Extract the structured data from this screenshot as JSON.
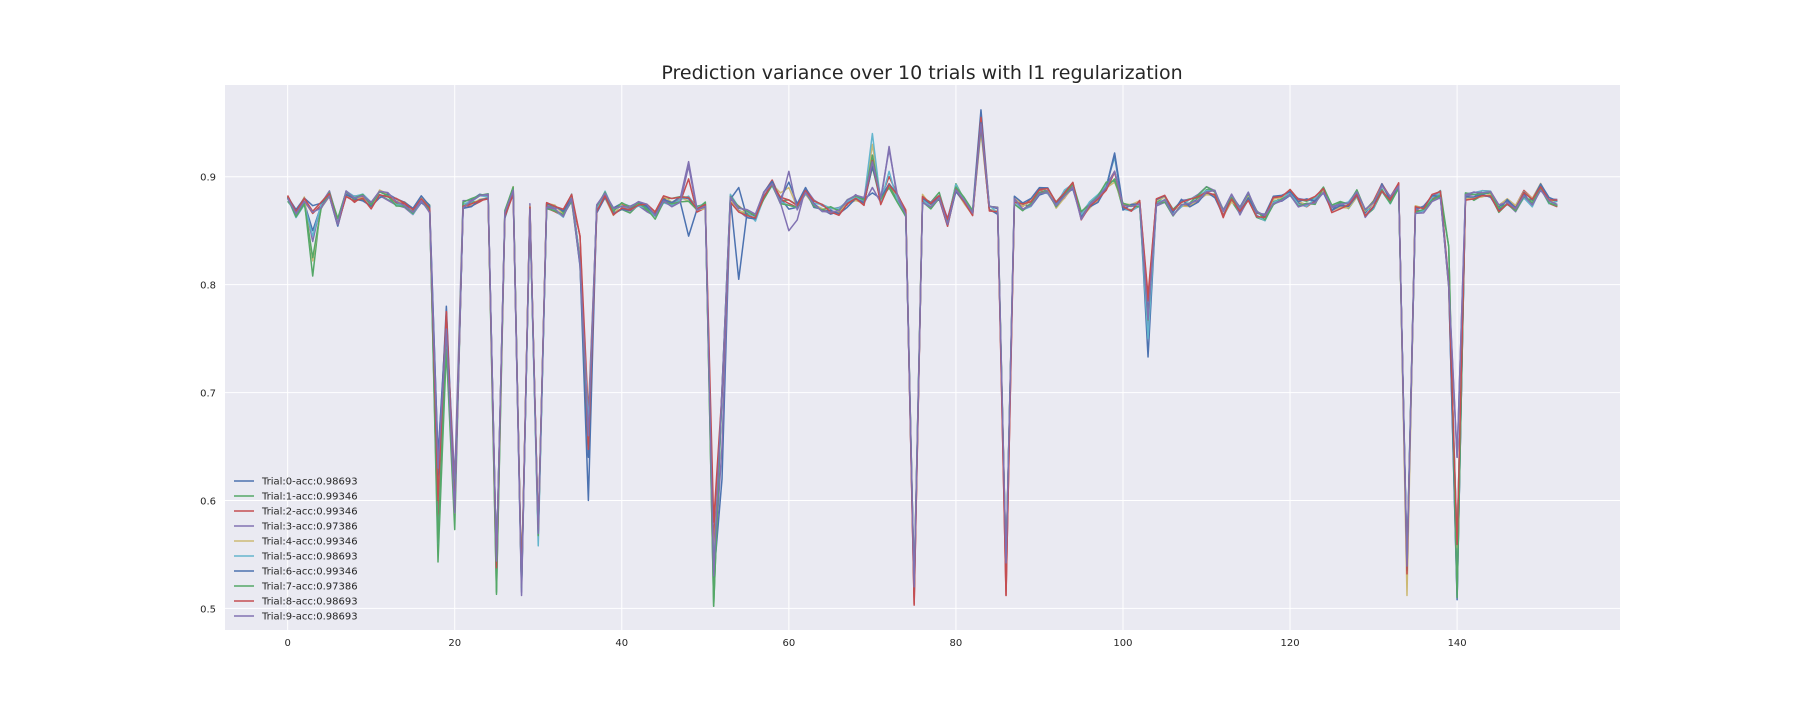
{
  "chart_data": {
    "type": "line",
    "title": "Prediction variance over 10 trials with l1 regularization",
    "xlabel": "",
    "ylabel": "",
    "xlim": [
      -7.5,
      159.5
    ],
    "ylim": [
      0.48,
      0.985
    ],
    "xticks": [
      0,
      20,
      40,
      60,
      80,
      100,
      120,
      140
    ],
    "yticks": [
      0.5,
      0.6,
      0.7,
      0.8,
      0.9
    ],
    "grid": true,
    "legend_position": "lower-left",
    "n_points": 153,
    "base_value": 0.875,
    "base_profile": [
      [
        0,
        0.881
      ],
      [
        1,
        0.866
      ],
      [
        2,
        0.878
      ],
      [
        3,
        0.87
      ],
      [
        4,
        0.874
      ],
      [
        5,
        0.883
      ],
      [
        6,
        0.858
      ],
      [
        7,
        0.884
      ],
      [
        8,
        0.88
      ],
      [
        9,
        0.881
      ],
      [
        10,
        0.873
      ],
      [
        11,
        0.884
      ],
      [
        12,
        0.882
      ],
      [
        13,
        0.876
      ],
      [
        14,
        0.874
      ],
      [
        15,
        0.868
      ],
      [
        16,
        0.879
      ],
      [
        17,
        0.87
      ],
      [
        18,
        0.56
      ],
      [
        19,
        0.76
      ],
      [
        20,
        0.59
      ],
      [
        21,
        0.874
      ],
      [
        22,
        0.876
      ],
      [
        23,
        0.88
      ],
      [
        24,
        0.881
      ],
      [
        25,
        0.54
      ],
      [
        26,
        0.865
      ],
      [
        27,
        0.887
      ],
      [
        28,
        0.52
      ],
      [
        29,
        0.87
      ],
      [
        30,
        0.57
      ],
      [
        31,
        0.873
      ],
      [
        32,
        0.871
      ],
      [
        33,
        0.866
      ],
      [
        34,
        0.881
      ],
      [
        35,
        0.82
      ],
      [
        36,
        0.65
      ],
      [
        37,
        0.87
      ],
      [
        38,
        0.883
      ],
      [
        39,
        0.868
      ],
      [
        40,
        0.872
      ],
      [
        41,
        0.87
      ],
      [
        42,
        0.876
      ],
      [
        43,
        0.871
      ],
      [
        44,
        0.864
      ],
      [
        45,
        0.879
      ],
      [
        46,
        0.876
      ],
      [
        47,
        0.879
      ],
      [
        48,
        0.878
      ],
      [
        49,
        0.87
      ],
      [
        50,
        0.873
      ],
      [
        51,
        0.53
      ],
      [
        52,
        0.7
      ],
      [
        53,
        0.88
      ],
      [
        54,
        0.87
      ],
      [
        55,
        0.866
      ],
      [
        56,
        0.862
      ],
      [
        57,
        0.883
      ],
      [
        58,
        0.893
      ],
      [
        59,
        0.878
      ],
      [
        60,
        0.875
      ],
      [
        61,
        0.872
      ],
      [
        62,
        0.887
      ],
      [
        63,
        0.875
      ],
      [
        64,
        0.871
      ],
      [
        65,
        0.869
      ],
      [
        66,
        0.868
      ],
      [
        67,
        0.875
      ],
      [
        68,
        0.88
      ],
      [
        69,
        0.877
      ],
      [
        70,
        0.91
      ],
      [
        71,
        0.878
      ],
      [
        72,
        0.893
      ],
      [
        73,
        0.88
      ],
      [
        74,
        0.866
      ],
      [
        75,
        0.52
      ],
      [
        76,
        0.88
      ],
      [
        77,
        0.874
      ],
      [
        78,
        0.882
      ],
      [
        79,
        0.858
      ],
      [
        80,
        0.89
      ],
      [
        81,
        0.878
      ],
      [
        82,
        0.866
      ],
      [
        83,
        0.945
      ],
      [
        84,
        0.87
      ],
      [
        85,
        0.868
      ],
      [
        86,
        0.54
      ],
      [
        87,
        0.878
      ],
      [
        88,
        0.872
      ],
      [
        89,
        0.876
      ],
      [
        90,
        0.886
      ],
      [
        91,
        0.886
      ],
      [
        92,
        0.874
      ],
      [
        93,
        0.884
      ],
      [
        94,
        0.892
      ],
      [
        95,
        0.864
      ],
      [
        96,
        0.874
      ],
      [
        97,
        0.88
      ],
      [
        98,
        0.89
      ],
      [
        99,
        0.905
      ],
      [
        100,
        0.873
      ],
      [
        101,
        0.872
      ],
      [
        102,
        0.874
      ],
      [
        103,
        0.77
      ],
      [
        104,
        0.876
      ],
      [
        105,
        0.88
      ],
      [
        106,
        0.866
      ],
      [
        107,
        0.876
      ],
      [
        108,
        0.876
      ],
      [
        109,
        0.88
      ],
      [
        110,
        0.887
      ],
      [
        111,
        0.884
      ],
      [
        112,
        0.866
      ],
      [
        113,
        0.88
      ],
      [
        114,
        0.868
      ],
      [
        115,
        0.882
      ],
      [
        116,
        0.866
      ],
      [
        117,
        0.862
      ],
      [
        118,
        0.878
      ],
      [
        119,
        0.88
      ],
      [
        120,
        0.886
      ],
      [
        121,
        0.876
      ],
      [
        122,
        0.876
      ],
      [
        123,
        0.878
      ],
      [
        124,
        0.888
      ],
      [
        125,
        0.87
      ],
      [
        126,
        0.874
      ],
      [
        127,
        0.874
      ],
      [
        128,
        0.884
      ],
      [
        129,
        0.866
      ],
      [
        130,
        0.874
      ],
      [
        131,
        0.89
      ],
      [
        132,
        0.878
      ],
      [
        133,
        0.892
      ],
      [
        134,
        0.54
      ],
      [
        135,
        0.87
      ],
      [
        136,
        0.87
      ],
      [
        137,
        0.88
      ],
      [
        138,
        0.884
      ],
      [
        139,
        0.8
      ],
      [
        140,
        0.56
      ],
      [
        141,
        0.882
      ],
      [
        142,
        0.882
      ],
      [
        143,
        0.884
      ],
      [
        144,
        0.884
      ],
      [
        145,
        0.87
      ],
      [
        146,
        0.876
      ],
      [
        147,
        0.87
      ],
      [
        148,
        0.884
      ],
      [
        149,
        0.876
      ],
      [
        150,
        0.89
      ],
      [
        151,
        0.878
      ],
      [
        152,
        0.876
      ]
    ],
    "series": [
      {
        "name": "Trial:0-acc:0.98693",
        "color": "#4c72b0",
        "overrides": [
          [
            3,
            0.85
          ],
          [
            18,
            0.62
          ],
          [
            19,
            0.78
          ],
          [
            20,
            0.6
          ],
          [
            36,
            0.6
          ],
          [
            48,
            0.845
          ],
          [
            52,
            0.62
          ],
          [
            54,
            0.805
          ],
          [
            60,
            0.87
          ],
          [
            70,
            0.885
          ],
          [
            75,
            0.51
          ],
          [
            83,
            0.962
          ],
          [
            86,
            0.53
          ],
          [
            99,
            0.922
          ],
          [
            103,
            0.733
          ],
          [
            140,
            0.508
          ]
        ]
      },
      {
        "name": "Trial:1-acc:0.99346",
        "color": "#55a868",
        "overrides": [
          [
            2,
            0.878
          ],
          [
            3,
            0.808
          ],
          [
            18,
            0.543
          ],
          [
            19,
            0.74
          ],
          [
            20,
            0.573
          ],
          [
            25,
            0.513
          ],
          [
            51,
            0.502
          ],
          [
            99,
            0.898
          ],
          [
            139,
            0.835
          ],
          [
            140,
            0.52
          ]
        ]
      },
      {
        "name": "Trial:2-acc:0.99346",
        "color": "#c44e52",
        "overrides": [
          [
            3,
            0.866
          ],
          [
            18,
            0.58
          ],
          [
            19,
            0.775
          ],
          [
            35,
            0.845
          ],
          [
            36,
            0.68
          ],
          [
            48,
            0.898
          ],
          [
            51,
            0.56
          ],
          [
            70,
            0.92
          ],
          [
            72,
            0.9
          ],
          [
            75,
            0.503
          ],
          [
            83,
            0.955
          ],
          [
            86,
            0.512
          ],
          [
            103,
            0.79
          ],
          [
            134,
            0.53
          ]
        ]
      },
      {
        "name": "Trial:3-acc:0.97386",
        "color": "#8172b2",
        "overrides": [
          [
            3,
            0.84
          ],
          [
            18,
            0.64
          ],
          [
            20,
            0.62
          ],
          [
            28,
            0.512
          ],
          [
            29,
            0.875
          ],
          [
            48,
            0.914
          ],
          [
            52,
            0.65
          ],
          [
            60,
            0.85
          ],
          [
            61,
            0.86
          ],
          [
            70,
            0.89
          ],
          [
            72,
            0.928
          ],
          [
            103,
            0.76
          ],
          [
            140,
            0.64
          ]
        ]
      },
      {
        "name": "Trial:4-acc:0.99346",
        "color": "#ccb974",
        "overrides": [
          [
            3,
            0.822
          ],
          [
            18,
            0.6
          ],
          [
            51,
            0.54
          ],
          [
            59,
            0.885
          ],
          [
            60,
            0.89
          ],
          [
            70,
            0.93
          ],
          [
            99,
            0.895
          ],
          [
            134,
            0.512
          ]
        ]
      },
      {
        "name": "Trial:5-acc:0.98693",
        "color": "#64b5cd",
        "overrides": [
          [
            3,
            0.845
          ],
          [
            30,
            0.558
          ],
          [
            36,
            0.67
          ],
          [
            48,
            0.882
          ],
          [
            70,
            0.94
          ],
          [
            72,
            0.905
          ],
          [
            99,
            0.918
          ],
          [
            103,
            0.75
          ]
        ]
      },
      {
        "name": "Trial:6-acc:0.99346",
        "color": "#4c72b0",
        "overrides": [
          [
            18,
            0.64
          ],
          [
            19,
            0.77
          ],
          [
            36,
            0.64
          ],
          [
            54,
            0.89
          ],
          [
            60,
            0.895
          ],
          [
            61,
            0.875
          ],
          [
            83,
            0.95
          ],
          [
            99,
            0.921
          ],
          [
            140,
            0.51
          ]
        ]
      },
      {
        "name": "Trial:7-acc:0.97386",
        "color": "#55a868",
        "overrides": [
          [
            3,
            0.825
          ],
          [
            25,
            0.515
          ],
          [
            51,
            0.502
          ],
          [
            70,
            0.92
          ],
          [
            98,
            0.895
          ],
          [
            99,
            0.896
          ],
          [
            134,
            0.535
          ],
          [
            139,
            0.835
          ],
          [
            140,
            0.51
          ]
        ]
      },
      {
        "name": "Trial:8-acc:0.98693",
        "color": "#c44e52",
        "overrides": [
          [
            3,
            0.868
          ],
          [
            18,
            0.6
          ],
          [
            19,
            0.775
          ],
          [
            35,
            0.845
          ],
          [
            51,
            0.58
          ],
          [
            70,
            0.915
          ],
          [
            75,
            0.504
          ],
          [
            83,
            0.948
          ],
          [
            86,
            0.512
          ],
          [
            103,
            0.785
          ],
          [
            134,
            0.532
          ]
        ]
      },
      {
        "name": "Trial:9-acc:0.98693",
        "color": "#8172b2",
        "overrides": [
          [
            18,
            0.63
          ],
          [
            28,
            0.515
          ],
          [
            29,
            0.87
          ],
          [
            36,
            0.66
          ],
          [
            48,
            0.91
          ],
          [
            60,
            0.905
          ],
          [
            72,
            0.925
          ],
          [
            140,
            0.64
          ]
        ]
      }
    ]
  }
}
